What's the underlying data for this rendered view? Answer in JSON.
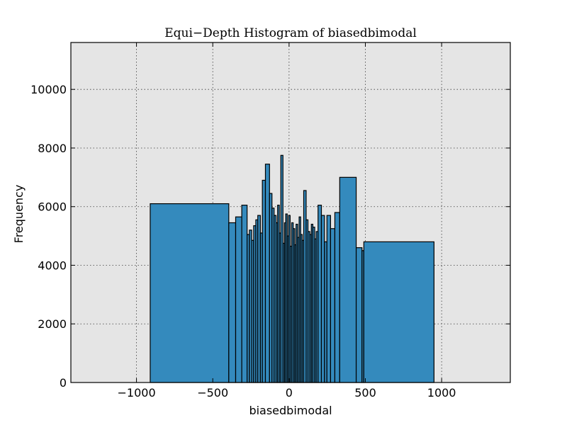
{
  "chart_data": {
    "type": "bar",
    "title": "Equi−Depth Histogram of biasedbimodal",
    "xlabel": "biasedbimodal",
    "ylabel": "Frequency",
    "xlim": [
      -1430,
      1450
    ],
    "ylim": [
      0,
      11600
    ],
    "xticks": [
      -1000,
      -500,
      0,
      500,
      1000
    ],
    "xtick_labels": [
      "−1000",
      "−500",
      "0",
      "500",
      "1000"
    ],
    "yticks": [
      0,
      2000,
      4000,
      6000,
      8000,
      10000
    ],
    "ytick_labels": [
      "0",
      "2000",
      "4000",
      "6000",
      "8000",
      "10000"
    ],
    "grid": true,
    "bar_color": "#348abd",
    "background_color": "#e5e5e5",
    "bins": [
      {
        "x0": -910,
        "x1": -395,
        "value": 6100
      },
      {
        "x0": -395,
        "x1": -350,
        "value": 5450
      },
      {
        "x0": -350,
        "x1": -310,
        "value": 5650
      },
      {
        "x0": -310,
        "x1": -275,
        "value": 6050
      },
      {
        "x0": -275,
        "x1": -260,
        "value": 5050
      },
      {
        "x0": -260,
        "x1": -245,
        "value": 5200
      },
      {
        "x0": -245,
        "x1": -232,
        "value": 4850
      },
      {
        "x0": -232,
        "x1": -218,
        "value": 5350
      },
      {
        "x0": -218,
        "x1": -205,
        "value": 5550
      },
      {
        "x0": -205,
        "x1": -188,
        "value": 5700
      },
      {
        "x0": -188,
        "x1": -175,
        "value": 5100
      },
      {
        "x0": -175,
        "x1": -155,
        "value": 6900
      },
      {
        "x0": -155,
        "x1": -128,
        "value": 7450
      },
      {
        "x0": -128,
        "x1": -112,
        "value": 6450
      },
      {
        "x0": -112,
        "x1": -98,
        "value": 5950
      },
      {
        "x0": -98,
        "x1": -85,
        "value": 5700
      },
      {
        "x0": -85,
        "x1": -75,
        "value": 5450
      },
      {
        "x0": -75,
        "x1": -64,
        "value": 6050
      },
      {
        "x0": -64,
        "x1": -54,
        "value": 5100
      },
      {
        "x0": -54,
        "x1": -40,
        "value": 7750
      },
      {
        "x0": -40,
        "x1": -30,
        "value": 4750
      },
      {
        "x0": -30,
        "x1": -22,
        "value": 5450
      },
      {
        "x0": -22,
        "x1": -12,
        "value": 5750
      },
      {
        "x0": -12,
        "x1": -3,
        "value": 5000
      },
      {
        "x0": -3,
        "x1": 7,
        "value": 5700
      },
      {
        "x0": 7,
        "x1": 17,
        "value": 4650
      },
      {
        "x0": 17,
        "x1": 27,
        "value": 5450
      },
      {
        "x0": 27,
        "x1": 37,
        "value": 5250
      },
      {
        "x0": 37,
        "x1": 46,
        "value": 4700
      },
      {
        "x0": 46,
        "x1": 56,
        "value": 5400
      },
      {
        "x0": 56,
        "x1": 66,
        "value": 4950
      },
      {
        "x0": 66,
        "x1": 76,
        "value": 5650
      },
      {
        "x0": 76,
        "x1": 86,
        "value": 5050
      },
      {
        "x0": 86,
        "x1": 96,
        "value": 4850
      },
      {
        "x0": 96,
        "x1": 112,
        "value": 6550
      },
      {
        "x0": 112,
        "x1": 124,
        "value": 5550
      },
      {
        "x0": 124,
        "x1": 136,
        "value": 5150
      },
      {
        "x0": 136,
        "x1": 146,
        "value": 5050
      },
      {
        "x0": 146,
        "x1": 156,
        "value": 5400
      },
      {
        "x0": 156,
        "x1": 168,
        "value": 5300
      },
      {
        "x0": 168,
        "x1": 178,
        "value": 4900
      },
      {
        "x0": 178,
        "x1": 190,
        "value": 5150
      },
      {
        "x0": 190,
        "x1": 212,
        "value": 6050
      },
      {
        "x0": 212,
        "x1": 232,
        "value": 5700
      },
      {
        "x0": 232,
        "x1": 248,
        "value": 4800
      },
      {
        "x0": 248,
        "x1": 272,
        "value": 5700
      },
      {
        "x0": 272,
        "x1": 300,
        "value": 5250
      },
      {
        "x0": 300,
        "x1": 332,
        "value": 5800
      },
      {
        "x0": 332,
        "x1": 440,
        "value": 7000
      },
      {
        "x0": 440,
        "x1": 478,
        "value": 4600
      },
      {
        "x0": 478,
        "x1": 490,
        "value": 4500
      },
      {
        "x0": 490,
        "x1": 950,
        "value": 4800
      }
    ]
  }
}
